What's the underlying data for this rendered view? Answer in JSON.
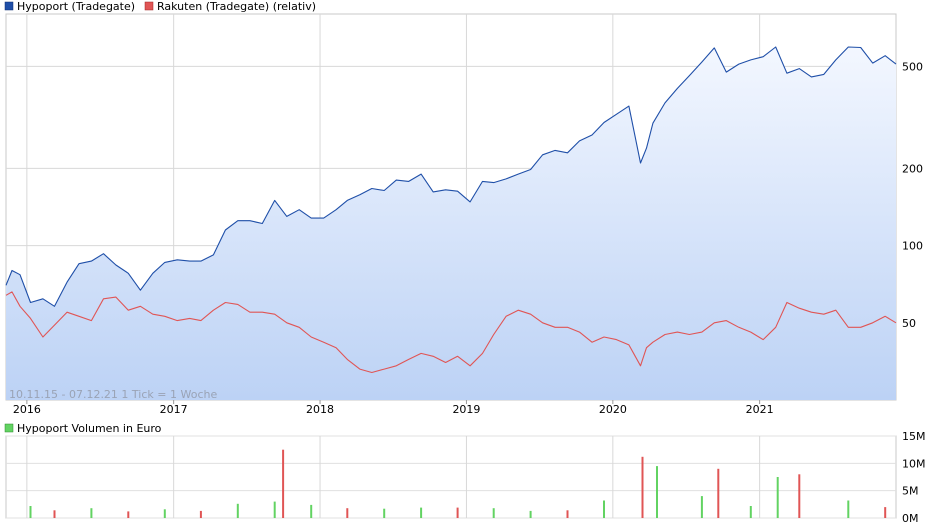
{
  "chart_data": [
    {
      "type": "line",
      "y_scale": "log",
      "legend": [
        {
          "name": "Hypoport (Tradegate)",
          "color": "#1f4fa8"
        },
        {
          "name": "Rakuten (Tradegate) (relativ)",
          "color": "#e05555"
        }
      ],
      "legend_placement": "top-left",
      "y_ticks": [
        "500",
        "200",
        "100",
        "50"
      ],
      "y_tick_values": [
        500,
        200,
        100,
        50
      ],
      "ylim": [
        25,
        800
      ],
      "x_ticks": [
        "2016",
        "2017",
        "2018",
        "2019",
        "2020",
        "2021"
      ],
      "x_tick_values": [
        "2016-01-01",
        "2017-01-01",
        "2018-01-01",
        "2019-01-01",
        "2020-01-01",
        "2021-01-01"
      ],
      "xlim": [
        "2015-11-10",
        "2021-12-07"
      ],
      "grid": true,
      "footnote": "10.11.15 - 07.12.21    1 Tick = 1 Woche",
      "series": [
        {
          "name": "Hypoport (Tradegate)",
          "color": "#1f4fa8",
          "area_fill": true,
          "points": [
            [
              "2015-11-10",
              70
            ],
            [
              "2015-11-25",
              80
            ],
            [
              "2015-12-15",
              77
            ],
            [
              "2016-01-10",
              60
            ],
            [
              "2016-02-10",
              62
            ],
            [
              "2016-03-10",
              58
            ],
            [
              "2016-04-10",
              72
            ],
            [
              "2016-05-10",
              85
            ],
            [
              "2016-06-10",
              87
            ],
            [
              "2016-07-10",
              93
            ],
            [
              "2016-08-10",
              84
            ],
            [
              "2016-09-10",
              78
            ],
            [
              "2016-10-10",
              67
            ],
            [
              "2016-11-10",
              78
            ],
            [
              "2016-12-10",
              86
            ],
            [
              "2017-01-10",
              88
            ],
            [
              "2017-02-10",
              87
            ],
            [
              "2017-03-10",
              87
            ],
            [
              "2017-04-10",
              92
            ],
            [
              "2017-05-10",
              115
            ],
            [
              "2017-06-10",
              125
            ],
            [
              "2017-07-10",
              125
            ],
            [
              "2017-08-10",
              122
            ],
            [
              "2017-09-10",
              150
            ],
            [
              "2017-10-10",
              130
            ],
            [
              "2017-11-10",
              138
            ],
            [
              "2017-12-10",
              128
            ],
            [
              "2018-01-10",
              128
            ],
            [
              "2018-02-10",
              138
            ],
            [
              "2018-03-10",
              150
            ],
            [
              "2018-04-10",
              158
            ],
            [
              "2018-05-10",
              167
            ],
            [
              "2018-06-10",
              164
            ],
            [
              "2018-07-10",
              180
            ],
            [
              "2018-08-10",
              178
            ],
            [
              "2018-09-10",
              190
            ],
            [
              "2018-10-10",
              162
            ],
            [
              "2018-11-10",
              165
            ],
            [
              "2018-12-10",
              163
            ],
            [
              "2019-01-10",
              148
            ],
            [
              "2019-02-10",
              178
            ],
            [
              "2019-03-10",
              176
            ],
            [
              "2019-04-10",
              182
            ],
            [
              "2019-05-10",
              190
            ],
            [
              "2019-06-10",
              198
            ],
            [
              "2019-07-10",
              226
            ],
            [
              "2019-08-10",
              235
            ],
            [
              "2019-09-10",
              230
            ],
            [
              "2019-10-10",
              256
            ],
            [
              "2019-11-10",
              270
            ],
            [
              "2019-12-10",
              302
            ],
            [
              "2020-01-10",
              325
            ],
            [
              "2020-02-10",
              350
            ],
            [
              "2020-03-10",
              210
            ],
            [
              "2020-03-25",
              240
            ],
            [
              "2020-04-10",
              300
            ],
            [
              "2020-05-10",
              360
            ],
            [
              "2020-06-10",
              410
            ],
            [
              "2020-07-10",
              460
            ],
            [
              "2020-08-10",
              520
            ],
            [
              "2020-09-10",
              590
            ],
            [
              "2020-10-10",
              475
            ],
            [
              "2020-11-10",
              510
            ],
            [
              "2020-12-10",
              530
            ],
            [
              "2021-01-10",
              545
            ],
            [
              "2021-02-10",
              595
            ],
            [
              "2021-03-10",
              470
            ],
            [
              "2021-04-10",
              490
            ],
            [
              "2021-05-10",
              455
            ],
            [
              "2021-06-10",
              465
            ],
            [
              "2021-07-10",
              530
            ],
            [
              "2021-08-10",
              595
            ],
            [
              "2021-09-10",
              592
            ],
            [
              "2021-10-10",
              515
            ],
            [
              "2021-11-10",
              550
            ],
            [
              "2021-12-07",
              510
            ]
          ]
        },
        {
          "name": "Rakuten (Tradegate) (relativ)",
          "color": "#e05555",
          "area_fill": false,
          "points": [
            [
              "2015-11-10",
              64
            ],
            [
              "2015-11-25",
              66
            ],
            [
              "2015-12-15",
              58
            ],
            [
              "2016-01-10",
              52
            ],
            [
              "2016-02-10",
              44
            ],
            [
              "2016-03-10",
              49
            ],
            [
              "2016-04-10",
              55
            ],
            [
              "2016-05-10",
              53
            ],
            [
              "2016-06-10",
              51
            ],
            [
              "2016-07-10",
              62
            ],
            [
              "2016-08-10",
              63
            ],
            [
              "2016-09-10",
              56
            ],
            [
              "2016-10-10",
              58
            ],
            [
              "2016-11-10",
              54
            ],
            [
              "2016-12-10",
              53
            ],
            [
              "2017-01-10",
              51
            ],
            [
              "2017-02-10",
              52
            ],
            [
              "2017-03-10",
              51
            ],
            [
              "2017-04-10",
              56
            ],
            [
              "2017-05-10",
              60
            ],
            [
              "2017-06-10",
              59
            ],
            [
              "2017-07-10",
              55
            ],
            [
              "2017-08-10",
              55
            ],
            [
              "2017-09-10",
              54
            ],
            [
              "2017-10-10",
              50
            ],
            [
              "2017-11-10",
              48
            ],
            [
              "2017-12-10",
              44
            ],
            [
              "2018-01-10",
              42
            ],
            [
              "2018-02-10",
              40
            ],
            [
              "2018-03-10",
              36
            ],
            [
              "2018-04-10",
              33
            ],
            [
              "2018-05-10",
              32
            ],
            [
              "2018-06-10",
              33
            ],
            [
              "2018-07-10",
              34
            ],
            [
              "2018-08-10",
              36
            ],
            [
              "2018-09-10",
              38
            ],
            [
              "2018-10-10",
              37
            ],
            [
              "2018-11-10",
              35
            ],
            [
              "2018-12-10",
              37
            ],
            [
              "2019-01-10",
              34
            ],
            [
              "2019-02-10",
              38
            ],
            [
              "2019-03-10",
              45
            ],
            [
              "2019-04-10",
              53
            ],
            [
              "2019-05-10",
              56
            ],
            [
              "2019-06-10",
              54
            ],
            [
              "2019-07-10",
              50
            ],
            [
              "2019-08-10",
              48
            ],
            [
              "2019-09-10",
              48
            ],
            [
              "2019-10-10",
              46
            ],
            [
              "2019-11-10",
              42
            ],
            [
              "2019-12-10",
              44
            ],
            [
              "2020-01-10",
              43
            ],
            [
              "2020-02-10",
              41
            ],
            [
              "2020-03-10",
              34
            ],
            [
              "2020-03-25",
              40
            ],
            [
              "2020-04-10",
              42
            ],
            [
              "2020-05-10",
              45
            ],
            [
              "2020-06-10",
              46
            ],
            [
              "2020-07-10",
              45
            ],
            [
              "2020-08-10",
              46
            ],
            [
              "2020-09-10",
              50
            ],
            [
              "2020-10-10",
              51
            ],
            [
              "2020-11-10",
              48
            ],
            [
              "2020-12-10",
              46
            ],
            [
              "2021-01-10",
              43
            ],
            [
              "2021-02-10",
              48
            ],
            [
              "2021-03-10",
              60
            ],
            [
              "2021-04-10",
              57
            ],
            [
              "2021-05-10",
              55
            ],
            [
              "2021-06-10",
              54
            ],
            [
              "2021-07-10",
              56
            ],
            [
              "2021-08-10",
              48
            ],
            [
              "2021-09-10",
              48
            ],
            [
              "2021-10-10",
              50
            ],
            [
              "2021-11-10",
              53
            ],
            [
              "2021-12-07",
              50
            ]
          ]
        }
      ]
    },
    {
      "type": "bar",
      "legend": [
        {
          "name": "Hypoport Volumen in Euro",
          "color": "#4caf50"
        }
      ],
      "legend_placement": "top-left",
      "y_ticks": [
        "15M",
        "10M",
        "5M",
        "0M"
      ],
      "y_tick_values": [
        15,
        10,
        5,
        0
      ],
      "ylim": [
        0,
        15
      ],
      "unit": "M",
      "grid": true,
      "positive_color": "#62d362",
      "negative_color": "#e05555",
      "bars": [
        {
          "date": "2016-01-10",
          "value": 2.2,
          "up": true
        },
        {
          "date": "2016-03-10",
          "value": 1.4,
          "up": false
        },
        {
          "date": "2016-06-10",
          "value": 1.8,
          "up": true
        },
        {
          "date": "2016-09-10",
          "value": 1.2,
          "up": false
        },
        {
          "date": "2016-12-10",
          "value": 1.6,
          "up": true
        },
        {
          "date": "2017-03-10",
          "value": 1.3,
          "up": false
        },
        {
          "date": "2017-06-10",
          "value": 2.6,
          "up": true
        },
        {
          "date": "2017-09-10",
          "value": 3.0,
          "up": true
        },
        {
          "date": "2017-10-01",
          "value": 12.5,
          "up": false
        },
        {
          "date": "2017-12-10",
          "value": 2.4,
          "up": true
        },
        {
          "date": "2018-03-10",
          "value": 1.8,
          "up": false
        },
        {
          "date": "2018-06-10",
          "value": 1.7,
          "up": true
        },
        {
          "date": "2018-09-10",
          "value": 1.9,
          "up": true
        },
        {
          "date": "2018-12-10",
          "value": 1.9,
          "up": false
        },
        {
          "date": "2019-03-10",
          "value": 1.8,
          "up": true
        },
        {
          "date": "2019-06-10",
          "value": 1.3,
          "up": true
        },
        {
          "date": "2019-09-10",
          "value": 1.4,
          "up": false
        },
        {
          "date": "2019-12-10",
          "value": 3.2,
          "up": true
        },
        {
          "date": "2020-03-15",
          "value": 11.2,
          "up": false
        },
        {
          "date": "2020-04-20",
          "value": 9.5,
          "up": true
        },
        {
          "date": "2020-08-10",
          "value": 4.0,
          "up": true
        },
        {
          "date": "2020-09-20",
          "value": 9.0,
          "up": false
        },
        {
          "date": "2020-12-10",
          "value": 2.2,
          "up": true
        },
        {
          "date": "2021-02-15",
          "value": 7.5,
          "up": true
        },
        {
          "date": "2021-04-10",
          "value": 8.0,
          "up": false
        },
        {
          "date": "2021-08-10",
          "value": 3.2,
          "up": true
        },
        {
          "date": "2021-11-10",
          "value": 2.0,
          "up": false
        }
      ]
    }
  ]
}
